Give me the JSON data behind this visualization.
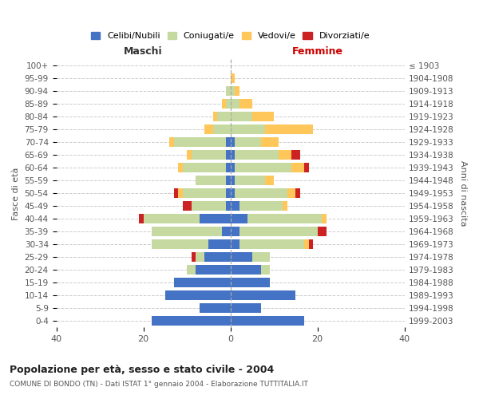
{
  "age_groups": [
    "0-4",
    "5-9",
    "10-14",
    "15-19",
    "20-24",
    "25-29",
    "30-34",
    "35-39",
    "40-44",
    "45-49",
    "50-54",
    "55-59",
    "60-64",
    "65-69",
    "70-74",
    "75-79",
    "80-84",
    "85-89",
    "90-94",
    "95-99",
    "100+"
  ],
  "birth_years": [
    "1999-2003",
    "1994-1998",
    "1989-1993",
    "1984-1988",
    "1979-1983",
    "1974-1978",
    "1969-1973",
    "1964-1968",
    "1959-1963",
    "1954-1958",
    "1949-1953",
    "1944-1948",
    "1939-1943",
    "1934-1938",
    "1929-1933",
    "1924-1928",
    "1919-1923",
    "1914-1918",
    "1909-1913",
    "1904-1908",
    "≤ 1903"
  ],
  "male": {
    "celibe": [
      18,
      7,
      15,
      13,
      8,
      6,
      5,
      2,
      7,
      1,
      1,
      1,
      1,
      1,
      1,
      0,
      0,
      0,
      0,
      0,
      0
    ],
    "coniugato": [
      0,
      0,
      0,
      0,
      2,
      2,
      13,
      16,
      13,
      8,
      10,
      7,
      10,
      8,
      12,
      4,
      3,
      1,
      1,
      0,
      0
    ],
    "vedovo": [
      0,
      0,
      0,
      0,
      0,
      0,
      0,
      0,
      0,
      0,
      1,
      0,
      1,
      1,
      1,
      2,
      1,
      1,
      0,
      0,
      0
    ],
    "divorziato": [
      0,
      0,
      0,
      0,
      0,
      1,
      0,
      0,
      1,
      2,
      1,
      0,
      0,
      0,
      0,
      0,
      0,
      0,
      0,
      0,
      0
    ]
  },
  "female": {
    "nubile": [
      17,
      7,
      15,
      9,
      7,
      5,
      2,
      2,
      4,
      2,
      1,
      1,
      1,
      1,
      1,
      0,
      0,
      0,
      0,
      0,
      0
    ],
    "coniugata": [
      0,
      0,
      0,
      0,
      2,
      4,
      15,
      18,
      17,
      10,
      12,
      7,
      13,
      10,
      6,
      8,
      5,
      2,
      1,
      0,
      0
    ],
    "vedova": [
      0,
      0,
      0,
      0,
      0,
      0,
      1,
      0,
      1,
      1,
      2,
      2,
      3,
      3,
      4,
      11,
      5,
      3,
      1,
      1,
      0
    ],
    "divorziata": [
      0,
      0,
      0,
      0,
      0,
      0,
      1,
      2,
      0,
      0,
      1,
      0,
      1,
      2,
      0,
      0,
      0,
      0,
      0,
      0,
      0
    ]
  },
  "colors": {
    "celibe_nubile": "#4472c4",
    "coniugato": "#c5d9a0",
    "vedovo": "#ffc659",
    "divorziato": "#cc2222"
  },
  "xlim": 40,
  "title": "Popolazione per età, sesso e stato civile - 2004",
  "subtitle": "COMUNE DI BONDO (TN) - Dati ISTAT 1° gennaio 2004 - Elaborazione TUTTITALIA.IT",
  "ylabel_left": "Fasce di età",
  "ylabel_right": "Anni di nascita",
  "xlabel_left": "Maschi",
  "xlabel_right": "Femmine",
  "background_color": "#ffffff",
  "grid_color": "#cccccc"
}
